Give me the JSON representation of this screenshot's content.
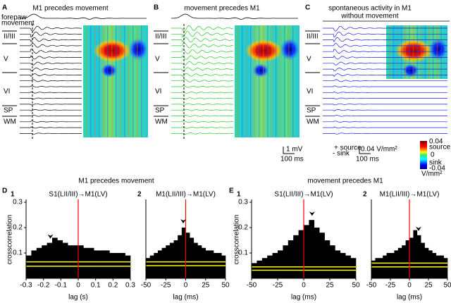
{
  "panels": [
    {
      "letter": "A",
      "title": [
        "M1 precedes  movement"
      ],
      "title_color": "#000000",
      "trace_color": "#000000"
    },
    {
      "letter": "B",
      "title": [
        "movement precedes M1"
      ],
      "title_color": "#22dd22",
      "trace_color": "#22cc22"
    },
    {
      "letter": "C",
      "title": [
        "spontaneous activity in M1",
        "without movement"
      ],
      "title_color": "#1a1acc",
      "trace_color": "#1a1aee"
    }
  ],
  "forepaw_label": [
    "forepaw",
    "movement"
  ],
  "layers": [
    "II/III",
    "V",
    "VI",
    "SP",
    "WM"
  ],
  "scale_bars": {
    "voltage": "1 mV",
    "time": "100 ms",
    "source": "+ source",
    "sink": "- sink",
    "csd": "0.04 V/mm²",
    "csd_time": "100 ms"
  },
  "colorbar": {
    "max": "0.04",
    "max_label": "source",
    "mid": "0",
    "min_label": "sink",
    "min": "-0.04",
    "unit": "V/mm²"
  },
  "groups": [
    {
      "letter": "D",
      "index": "1",
      "title": "M1 precedes  movement",
      "color": "#000000",
      "y_label": "crosscorrelation",
      "charts": [
        {
          "type": "histogram",
          "subtitle": "S1(LII/III)→M1(LV)",
          "x_label": "lag (s)",
          "bins": [
            -0.3,
            -0.27,
            -0.24,
            -0.21,
            -0.18,
            -0.15,
            -0.12,
            -0.09,
            -0.06,
            -0.03,
            0,
            0.03,
            0.06,
            0.09,
            0.12,
            0.15,
            0.18,
            0.21,
            0.24,
            0.27,
            0.3
          ],
          "values": [
            0.09,
            0.11,
            0.12,
            0.13,
            0.14,
            0.16,
            0.15,
            0.14,
            0.13,
            0.13,
            0.13,
            0.12,
            0.12,
            0.11,
            0.11,
            0.11,
            0.1,
            0.1,
            0.1,
            0.09
          ],
          "color": "#000000",
          "xlim": [
            -0.3,
            0.3
          ],
          "xticks": [
            -0.3,
            -0.2,
            -0.1,
            0,
            0.1,
            0.2,
            0.3
          ],
          "ylim": [
            0,
            0.3
          ],
          "yticks": [
            0.1,
            0.2,
            0.3
          ],
          "band": {
            "upper": 0.065,
            "lower": 0.048,
            "color": "#ffff00"
          },
          "reference_line": {
            "x": 0,
            "color": "#ff0000"
          },
          "peak": -0.16
        },
        {
          "type": "histogram",
          "label": "2",
          "subtitle": "M1(LII/III)→M1(LV)",
          "x_label": "lag (ms)",
          "bins": [
            -50,
            -45,
            -40,
            -35,
            -30,
            -25,
            -20,
            -15,
            -10,
            -5,
            0,
            5,
            10,
            15,
            20,
            25,
            30,
            35,
            40,
            45,
            50
          ],
          "values": [
            0.08,
            0.09,
            0.1,
            0.11,
            0.12,
            0.13,
            0.14,
            0.15,
            0.17,
            0.2,
            0.18,
            0.16,
            0.14,
            0.13,
            0.12,
            0.11,
            0.11,
            0.1,
            0.1,
            0.09
          ],
          "color": "#000000",
          "xlim": [
            -50,
            50
          ],
          "xticks": [
            -50,
            -25,
            0,
            25,
            50
          ],
          "ylim": [
            0,
            0.3
          ],
          "band": {
            "upper": 0.065,
            "lower": 0.05,
            "color": "#ffff00"
          },
          "reference_line": {
            "x": 0,
            "color": "#ff0000"
          },
          "peak": -3
        }
      ]
    },
    {
      "letter": "E",
      "index": "1",
      "title": "movement precedes M1",
      "color": "#22dd22",
      "y_label": "crosscorrelation",
      "charts": [
        {
          "type": "histogram",
          "subtitle": "S1(LII/III)→M1(LV)",
          "x_label": "lag (ms)",
          "bins": [
            -50,
            -45,
            -40,
            -35,
            -30,
            -25,
            -20,
            -15,
            -10,
            -5,
            0,
            5,
            10,
            15,
            20,
            25,
            30,
            35,
            40,
            45,
            50
          ],
          "values": [
            0.06,
            0.07,
            0.08,
            0.09,
            0.1,
            0.11,
            0.13,
            0.15,
            0.17,
            0.19,
            0.21,
            0.23,
            0.2,
            0.18,
            0.15,
            0.13,
            0.11,
            0.1,
            0.09,
            0.08
          ],
          "color": "#000000",
          "xlim": [
            -50,
            50
          ],
          "xticks": [
            -50,
            -25,
            0,
            25,
            50
          ],
          "ylim": [
            0,
            0.3
          ],
          "yticks": [
            0.1,
            0.2,
            0.3
          ],
          "band": {
            "upper": 0.045,
            "lower": 0.032,
            "color": "#ffff00"
          },
          "reference_line": {
            "x": 0,
            "color": "#ff0000"
          },
          "peak": 8
        },
        {
          "type": "histogram",
          "label": "2",
          "subtitle": "M1(LII/III)→M1(LV)",
          "x_label": "lag (ms)",
          "bins": [
            -50,
            -45,
            -40,
            -35,
            -30,
            -25,
            -20,
            -15,
            -10,
            -5,
            0,
            5,
            10,
            15,
            20,
            25,
            30,
            35,
            40,
            45,
            50
          ],
          "values": [
            0.07,
            0.08,
            0.08,
            0.09,
            0.1,
            0.1,
            0.11,
            0.12,
            0.13,
            0.15,
            0.16,
            0.19,
            0.17,
            0.14,
            0.12,
            0.11,
            0.1,
            0.09,
            0.09,
            0.08
          ],
          "color": "#000000",
          "xlim": [
            -50,
            50
          ],
          "xticks": [
            -50,
            -25,
            0,
            25,
            50
          ],
          "ylim": [
            0,
            0.3
          ],
          "band": {
            "upper": 0.06,
            "lower": 0.045,
            "color": "#ffff00"
          },
          "reference_line": {
            "x": 0,
            "color": "#ff0000"
          },
          "peak": 12
        }
      ]
    }
  ]
}
